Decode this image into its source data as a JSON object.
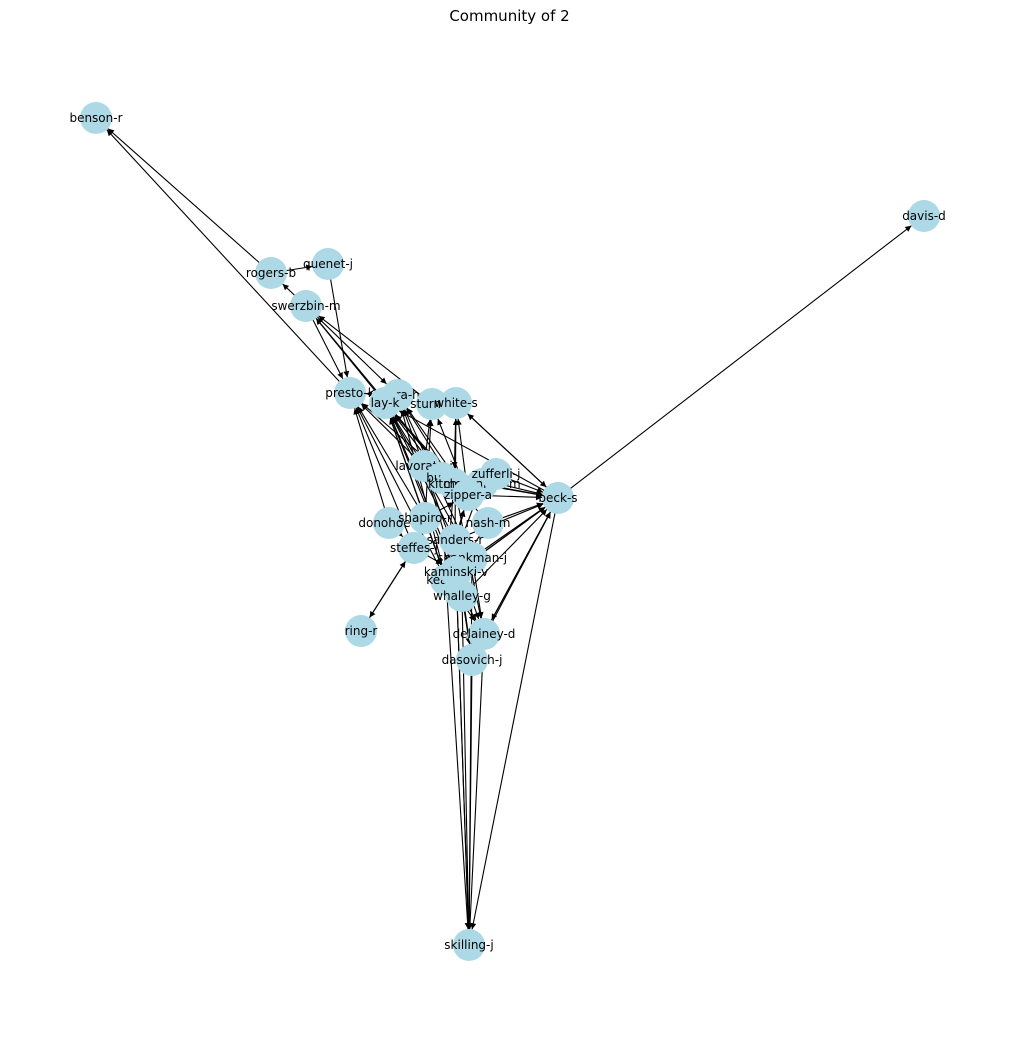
{
  "title": "Community of 2",
  "colors": {
    "node_fill": "#add8e6",
    "edge": "#000000",
    "background": "#ffffff"
  },
  "nodes": [
    {
      "id": "benson-r",
      "label": "benson-r"
    },
    {
      "id": "davis-d",
      "label": "davis-d"
    },
    {
      "id": "quenet-j",
      "label": "quenet-j"
    },
    {
      "id": "rogers-b",
      "label": "rogers-b"
    },
    {
      "id": "swerzbin-m",
      "label": "swerzbin-m"
    },
    {
      "id": "presto-k",
      "label": "presto-k"
    },
    {
      "id": "arora-h",
      "label": "arora-h"
    },
    {
      "id": "lay-k",
      "label": "lay-k"
    },
    {
      "id": "sturm-f",
      "label": "sturm-f"
    },
    {
      "id": "white-s",
      "label": "white-s"
    },
    {
      "id": "lavorato-j",
      "label": "lavorato-j"
    },
    {
      "id": "buy-r",
      "label": "buy-r"
    },
    {
      "id": "kitchen-l",
      "label": "kitchen-l"
    },
    {
      "id": "mcconnell-m",
      "label": "mcconnell-m"
    },
    {
      "id": "zufferli-j",
      "label": "zufferli-j"
    },
    {
      "id": "zipper-a",
      "label": "zipper-a"
    },
    {
      "id": "beck-s",
      "label": "beck-s"
    },
    {
      "id": "donohoe-t",
      "label": "donohoe-t"
    },
    {
      "id": "shapiro-r",
      "label": "shapiro-r"
    },
    {
      "id": "nash-m",
      "label": "nash-m"
    },
    {
      "id": "sanders-r",
      "label": "sanders-r"
    },
    {
      "id": "steffes-j",
      "label": "steffes-j"
    },
    {
      "id": "shankman-j",
      "label": "shankman-j"
    },
    {
      "id": "kean-s",
      "label": "kean-s"
    },
    {
      "id": "kaminski-v",
      "label": "kaminski-v"
    },
    {
      "id": "whalley-g",
      "label": "whalley-g"
    },
    {
      "id": "delainey-d",
      "label": "delainey-d"
    },
    {
      "id": "dasovich-j",
      "label": "dasovich-j"
    },
    {
      "id": "ring-r",
      "label": "ring-r"
    },
    {
      "id": "skilling-j",
      "label": "skilling-j"
    }
  ],
  "edges": [
    [
      "rogers-b",
      "benson-r"
    ],
    [
      "presto-k",
      "benson-r"
    ],
    [
      "beck-s",
      "davis-d"
    ],
    [
      "rogers-b",
      "quenet-j"
    ],
    [
      "swerzbin-m",
      "rogers-b"
    ],
    [
      "quenet-j",
      "presto-k"
    ],
    [
      "swerzbin-m",
      "presto-k"
    ],
    [
      "swerzbin-m",
      "arora-h"
    ],
    [
      "lay-k",
      "swerzbin-m"
    ],
    [
      "sturm-f",
      "swerzbin-m"
    ],
    [
      "kitchen-l",
      "swerzbin-m"
    ],
    [
      "arora-h",
      "presto-k"
    ],
    [
      "lavorato-j",
      "presto-k"
    ],
    [
      "zipper-a",
      "presto-k"
    ],
    [
      "shapiro-r",
      "presto-k"
    ],
    [
      "donohoe-t",
      "presto-k"
    ],
    [
      "steffes-j",
      "presto-k"
    ],
    [
      "kean-s",
      "presto-k"
    ],
    [
      "lavorato-j",
      "lay-k"
    ],
    [
      "buy-r",
      "lay-k"
    ],
    [
      "kitchen-l",
      "lay-k"
    ],
    [
      "zipper-a",
      "lay-k"
    ],
    [
      "shapiro-r",
      "lay-k"
    ],
    [
      "sanders-r",
      "lay-k"
    ],
    [
      "shankman-j",
      "lay-k"
    ],
    [
      "kean-s",
      "lay-k"
    ],
    [
      "kaminski-v",
      "lay-k"
    ],
    [
      "whalley-g",
      "lay-k"
    ],
    [
      "beck-s",
      "lay-k"
    ],
    [
      "nash-m",
      "lay-k"
    ],
    [
      "lavorato-j",
      "arora-h"
    ],
    [
      "kitchen-l",
      "arora-h"
    ],
    [
      "zipper-a",
      "arora-h"
    ],
    [
      "shankman-j",
      "arora-h"
    ],
    [
      "kean-s",
      "arora-h"
    ],
    [
      "sturm-f",
      "white-s"
    ],
    [
      "lavorato-j",
      "sturm-f"
    ],
    [
      "zipper-a",
      "sturm-f"
    ],
    [
      "shapiro-r",
      "sturm-f"
    ],
    [
      "white-s",
      "beck-s"
    ],
    [
      "white-s",
      "kitchen-l"
    ],
    [
      "zipper-a",
      "white-s"
    ],
    [
      "sanders-r",
      "white-s"
    ],
    [
      "beck-s",
      "white-s"
    ],
    [
      "lavorato-j",
      "beck-s"
    ],
    [
      "zufferli-j",
      "beck-s"
    ],
    [
      "buy-r",
      "beck-s"
    ],
    [
      "mcconnell-m",
      "beck-s"
    ],
    [
      "zipper-a",
      "beck-s"
    ],
    [
      "nash-m",
      "beck-s"
    ],
    [
      "sanders-r",
      "beck-s"
    ],
    [
      "shankman-j",
      "beck-s"
    ],
    [
      "kean-s",
      "beck-s"
    ],
    [
      "kaminski-v",
      "beck-s"
    ],
    [
      "whalley-g",
      "beck-s"
    ],
    [
      "delainey-d",
      "beck-s"
    ],
    [
      "dasovich-j",
      "beck-s"
    ],
    [
      "beck-s",
      "delainey-d"
    ],
    [
      "beck-s",
      "skilling-j"
    ],
    [
      "lavorato-j",
      "zipper-a"
    ],
    [
      "buy-r",
      "zipper-a"
    ],
    [
      "zipper-a",
      "kitchen-l"
    ],
    [
      "shapiro-r",
      "zipper-a"
    ],
    [
      "sanders-r",
      "zipper-a"
    ],
    [
      "kean-s",
      "zipper-a"
    ],
    [
      "steffes-j",
      "shapiro-r"
    ],
    [
      "shapiro-r",
      "kean-s"
    ],
    [
      "shapiro-r",
      "steffes-j"
    ],
    [
      "donohoe-t",
      "steffes-j"
    ],
    [
      "steffes-j",
      "ring-r"
    ],
    [
      "ring-r",
      "steffes-j"
    ],
    [
      "steffes-j",
      "kaminski-v"
    ],
    [
      "sanders-r",
      "kaminski-v"
    ],
    [
      "shankman-j",
      "kaminski-v"
    ],
    [
      "kaminski-v",
      "whalley-g"
    ],
    [
      "kean-s",
      "whalley-g"
    ],
    [
      "whalley-g",
      "delainey-d"
    ],
    [
      "kean-s",
      "delainey-d"
    ],
    [
      "sanders-r",
      "dasovich-j"
    ],
    [
      "shankman-j",
      "delainey-d"
    ],
    [
      "whalley-g",
      "dasovich-j"
    ],
    [
      "lavorato-j",
      "delainey-d"
    ],
    [
      "kitchen-l",
      "delainey-d"
    ],
    [
      "kean-s",
      "skilling-j"
    ],
    [
      "whalley-g",
      "skilling-j"
    ],
    [
      "delainey-d",
      "skilling-j"
    ],
    [
      "dasovich-j",
      "skilling-j"
    ],
    [
      "shankman-j",
      "skilling-j"
    ],
    [
      "kaminski-v",
      "skilling-j"
    ],
    [
      "sanders-r",
      "skilling-j"
    ],
    [
      "lavorato-j",
      "kaminski-v"
    ],
    [
      "mcconnell-m",
      "kean-s"
    ],
    [
      "kitchen-l",
      "kean-s"
    ],
    [
      "nash-m",
      "kaminski-v"
    ],
    [
      "zufferli-j",
      "kitchen-l"
    ]
  ]
}
